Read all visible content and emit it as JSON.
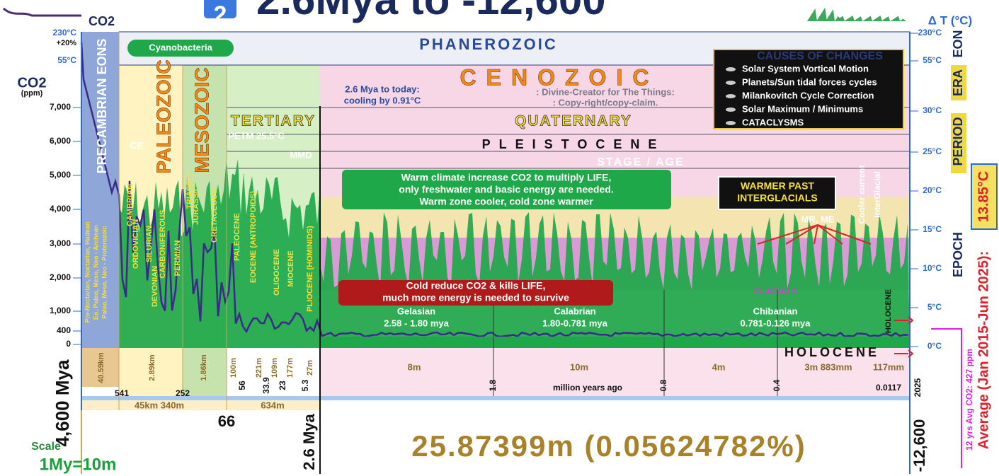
{
  "title": {
    "badge": "2",
    "text": "2.6Mya to -12,600"
  },
  "left_axis": {
    "co2_top": "CO2",
    "top": [
      "230°C",
      "+20%",
      "55°C"
    ],
    "label": "CO2",
    "unit": "(ppm)",
    "ticks": [
      "7,000",
      "6,000",
      "5,000",
      "4,000",
      "3,000",
      "2,000",
      "1,000",
      "400",
      "0"
    ]
  },
  "right_axis": {
    "label": "Δ T (°C)",
    "ticks": [
      "230°C",
      "55°C",
      "30°C",
      "25°C",
      "20°C",
      "15°C",
      "10°C",
      "5°C",
      "0°C"
    ],
    "levels": [
      "EON",
      "ERA",
      "PERIOD",
      "EPOCH"
    ],
    "average_value": "13.85°C",
    "average_label": "Average (Jan 2015-Jun 2025):",
    "co2_avg": "12 yrs Avg CO2: 427 ppm"
  },
  "bands": {
    "phanerozoic": "PHANEROZOIC",
    "cyanobacteria": "Cyanobacteria",
    "precambrian": "PRECAMBRIAN EONS",
    "paleozoic": "PALEOZOIC",
    "mesozoic": "MESOZOIC",
    "ce": "CE",
    "cenozoic": "CENOZOIC",
    "tertiary": "TERTIARY",
    "quaternary": "QUATERNARY",
    "petm": "PETM 25.5°C",
    "mmd": "MMD",
    "pleistocene": "PLEISTOCENE",
    "stage": "STAGE / AGE"
  },
  "note": [
    "2.6 Mya to today:",
    "cooling by 0.91°C"
  ],
  "credit": [
    ": Divine-Creator for The Things:",
    ": Copy-right/copy-claim."
  ],
  "causes": {
    "title": "CAUSES OF CHANGES",
    "items": [
      "Solar System Vortical Motion",
      "Planets/Sun tidal forces cycles",
      "Milankovitch Cycle Correction",
      "Solar Maximum / Minimums",
      "CATACLYSMS"
    ]
  },
  "precambrian_eons": [
    "Pre-Noctarian, Noctarian, Hadean",
    "Eo, Paleo, Meso, Neo - Archean",
    "Paleo, Meso, Neo - Proterozoic"
  ],
  "periods": [
    "CAMBRIAN",
    "ORDOVICIAN",
    "SILURIAN",
    "DEVONIAN",
    "CARBONIFEROUS",
    "PERMIAN",
    "TRIASSIC",
    "JURASSIC",
    "CRETACEOUS",
    "PALEOCENE",
    "EOCENE (ANTROPOIDS)",
    "OLIGOCENE",
    "MIOCENE",
    "PLIOCENE (HOMINIDS)"
  ],
  "messages": {
    "warm": [
      "Warm climate increase CO2 to multiply LIFE,",
      "only freshwater and basic energy are needed.",
      "Warm zone cooler, cold zone warmer"
    ],
    "cold": [
      "Cold reduce CO2 & kills LIFE,",
      "much more energy is needed to survive"
    ],
    "interglacials": [
      "WARMER PAST",
      "INTERGLACIALS"
    ],
    "mr_me": "MR, ME",
    "cooler": [
      "Cooler current",
      "InterGlacial"
    ],
    "glacials": "GLACIALS",
    "holocene_tag": "HOLOCENE"
  },
  "stages": [
    {
      "name": "Gelasian",
      "range": "2.58 - 1.80 mya"
    },
    {
      "name": "Calabrian",
      "range": "1.80-0.781 mya"
    },
    {
      "name": "Chibanian",
      "range": "0.781-0.126 mya"
    }
  ],
  "holocene": "HOLOCENE",
  "durations": [
    "40.59km",
    "2.89km",
    "1.86km",
    "100m",
    "221m",
    "109m",
    "177m",
    "27m",
    "8m",
    "10m",
    "4m",
    "3m 883mm",
    "117mm"
  ],
  "boundaries": [
    "541",
    "252",
    "56",
    "33.9",
    "23",
    "5.3",
    "1.8",
    "0.8",
    "0.4",
    "0.0117",
    "2025"
  ],
  "axis_label": "million years ago",
  "spans": [
    "45km 340m",
    "634m",
    "66"
  ],
  "footer": {
    "start": "4,600 Mya",
    "quaternary_start": "2.6 Mya",
    "scale_label": "Scale",
    "scale": "1My=10m",
    "length": "25.87399m (0.05624782%)",
    "end": "-12,600"
  }
}
